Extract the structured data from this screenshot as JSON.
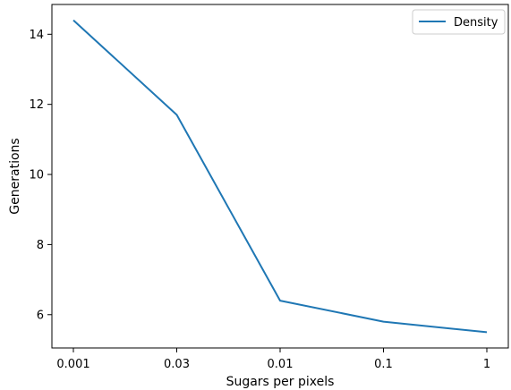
{
  "chart_data": {
    "type": "line",
    "categories": [
      "0.001",
      "0.03",
      "0.01",
      "0.1",
      "1"
    ],
    "series": [
      {
        "name": "Density",
        "values": [
          14.4,
          11.7,
          6.4,
          5.8,
          5.5
        ],
        "color": "#1f77b4"
      }
    ],
    "xlabel": "Sugars per pixels",
    "ylabel": "Generations",
    "ylim": [
      5.05,
      14.85
    ],
    "yticks": [
      6,
      8,
      10,
      12,
      14
    ],
    "grid": false,
    "legend_position": "top-right"
  }
}
